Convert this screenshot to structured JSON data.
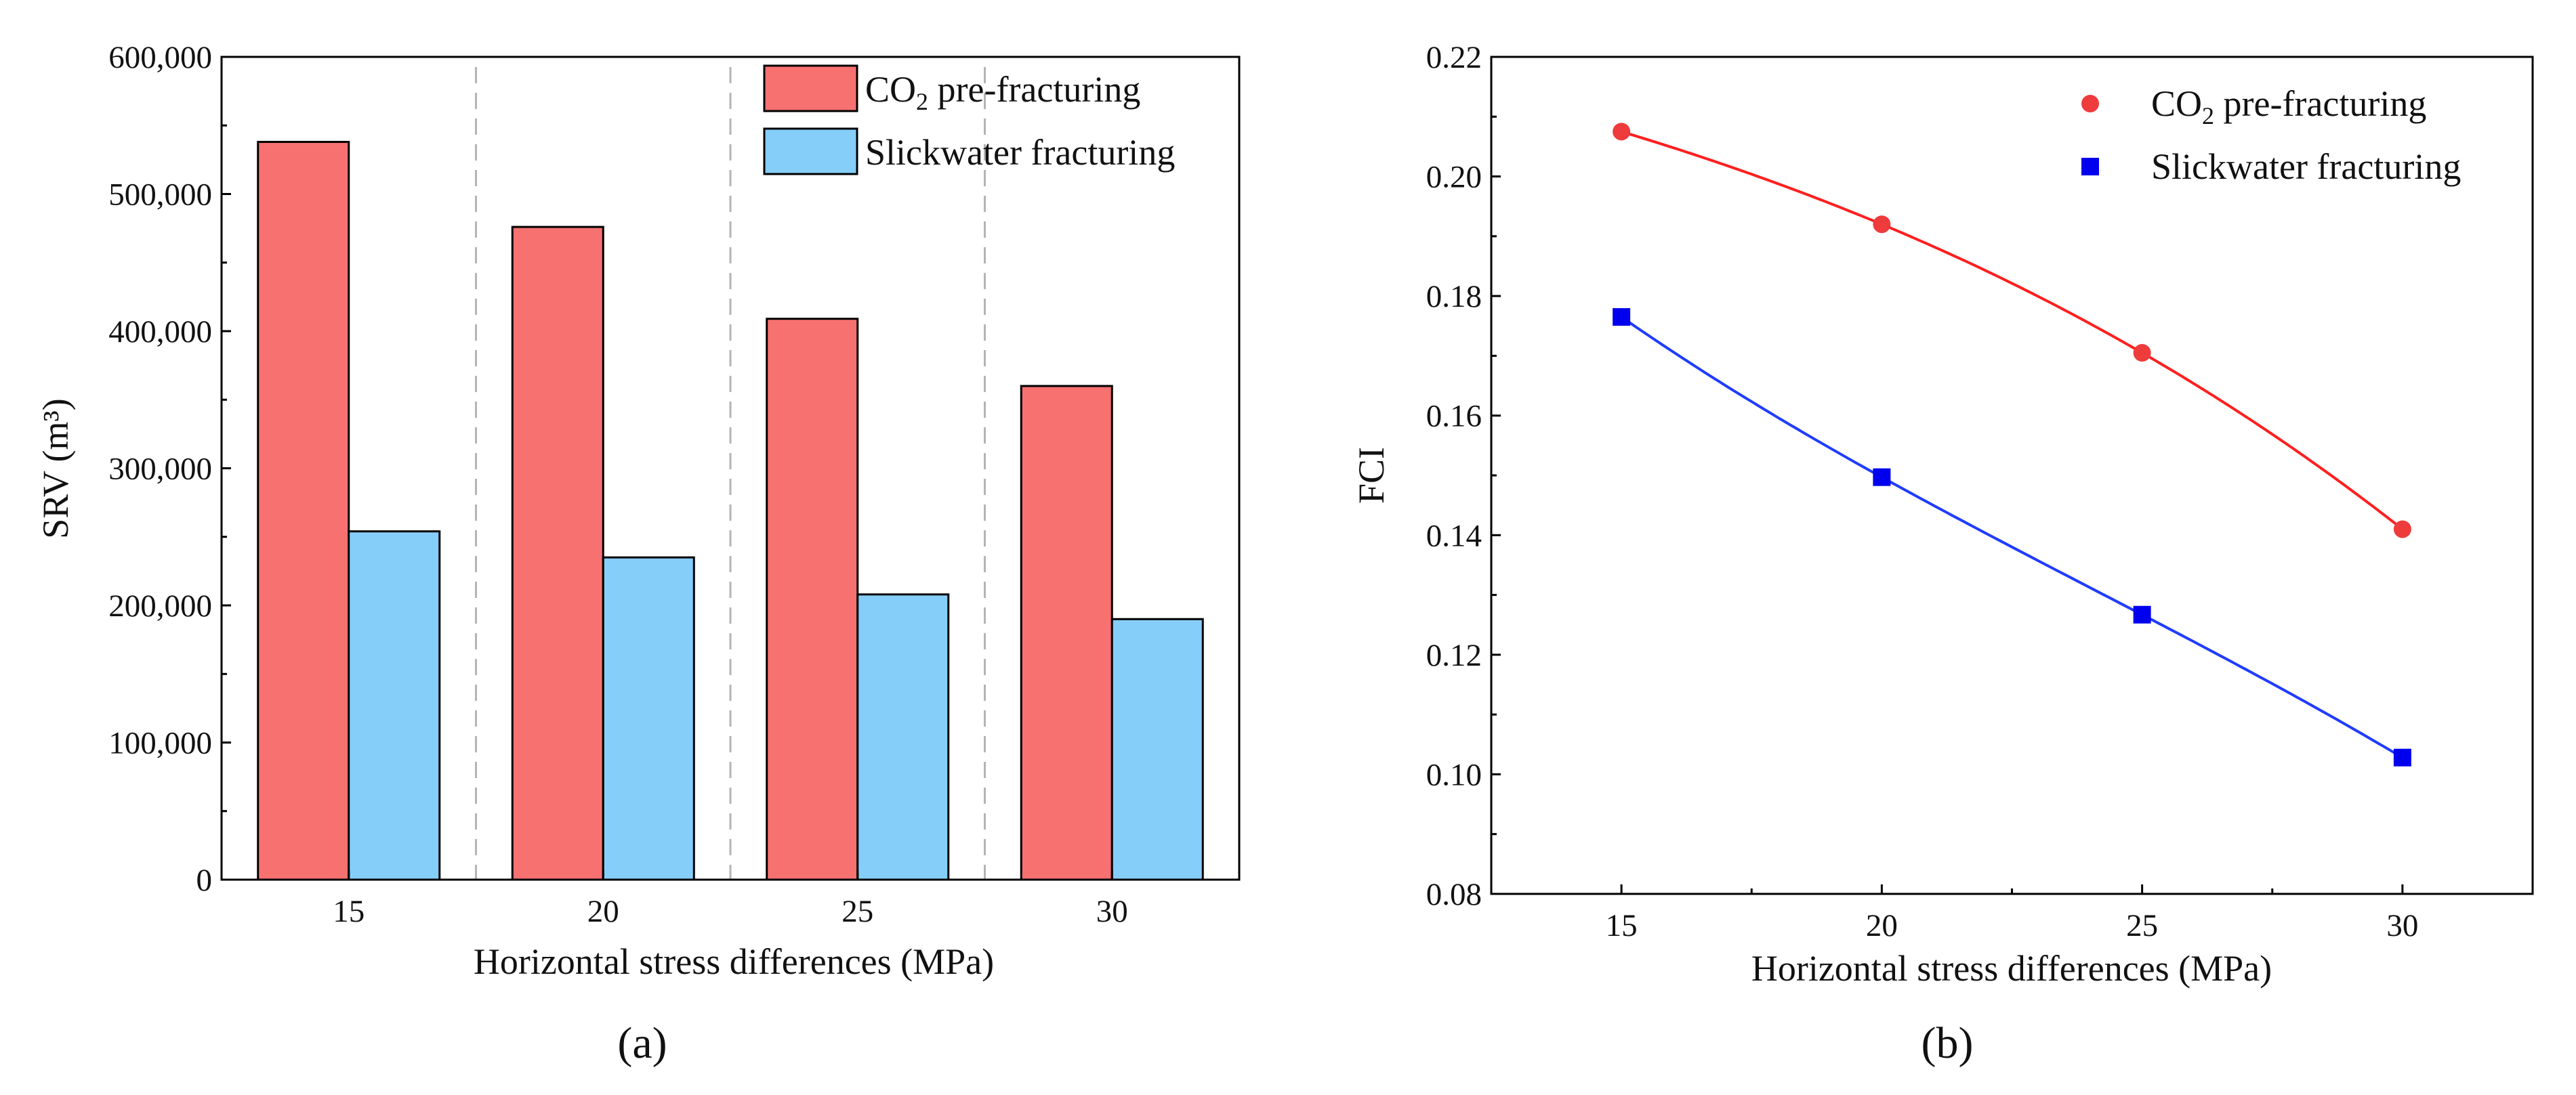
{
  "colors": {
    "co2": "#f87171",
    "slickwater": "#86cefa",
    "co2_line": "#ff1f1f",
    "co2_marker": "#ee3b3b",
    "slick_line": "#1f3cff",
    "slick_marker": "#0000ee",
    "divider": "#b4b4b4"
  },
  "chart_data": [
    {
      "type": "bar",
      "panel_label_text": "(a)",
      "categories": [
        "15",
        "20",
        "25",
        "30"
      ],
      "series": [
        {
          "name_main": "CO",
          "name_sub": "2",
          "name_rest": " pre-fracturing",
          "values": [
            538000,
            476000,
            409000,
            360000
          ]
        },
        {
          "name": "Slickwater fracturing",
          "values": [
            254000,
            235000,
            208000,
            190000
          ]
        }
      ],
      "xlabel": "Horizontal stress differences (MPa)",
      "ylabel": "SRV (m³)",
      "ylim": [
        0,
        600000
      ],
      "yticks": [
        0,
        100000,
        200000,
        300000,
        400000,
        500000,
        600000
      ],
      "ytick_labels": [
        "0",
        "100,000",
        "200,000",
        "300,000",
        "400,000",
        "500,000",
        "600,000"
      ],
      "grid": false,
      "legend_position": "top-right"
    },
    {
      "type": "line",
      "panel_label_text": "(b)",
      "x": [
        15,
        20,
        25,
        30
      ],
      "xlim": [
        12.5,
        32.5
      ],
      "xticks": [
        15,
        20,
        25,
        30
      ],
      "xtick_labels": [
        "15",
        "20",
        "25",
        "30"
      ],
      "series": [
        {
          "name_main": "CO",
          "name_sub": "2",
          "name_rest": " pre-fracturing",
          "marker": "circle",
          "values": [
            0.2075,
            0.192,
            0.1705,
            0.141
          ]
        },
        {
          "name": "Slickwater fracturing",
          "marker": "square",
          "values": [
            0.1765,
            0.1497,
            0.1267,
            0.1028
          ]
        }
      ],
      "xlabel": "Horizontal stress differences (MPa)",
      "ylabel": "FCI",
      "ylim": [
        0.08,
        0.22
      ],
      "yticks": [
        0.08,
        0.1,
        0.12,
        0.14,
        0.16,
        0.18,
        0.2,
        0.22
      ],
      "ytick_labels": [
        "0.08",
        "0.10",
        "0.12",
        "0.14",
        "0.16",
        "0.18",
        "0.20",
        "0.22"
      ],
      "grid": false,
      "legend_position": "top-right"
    }
  ]
}
